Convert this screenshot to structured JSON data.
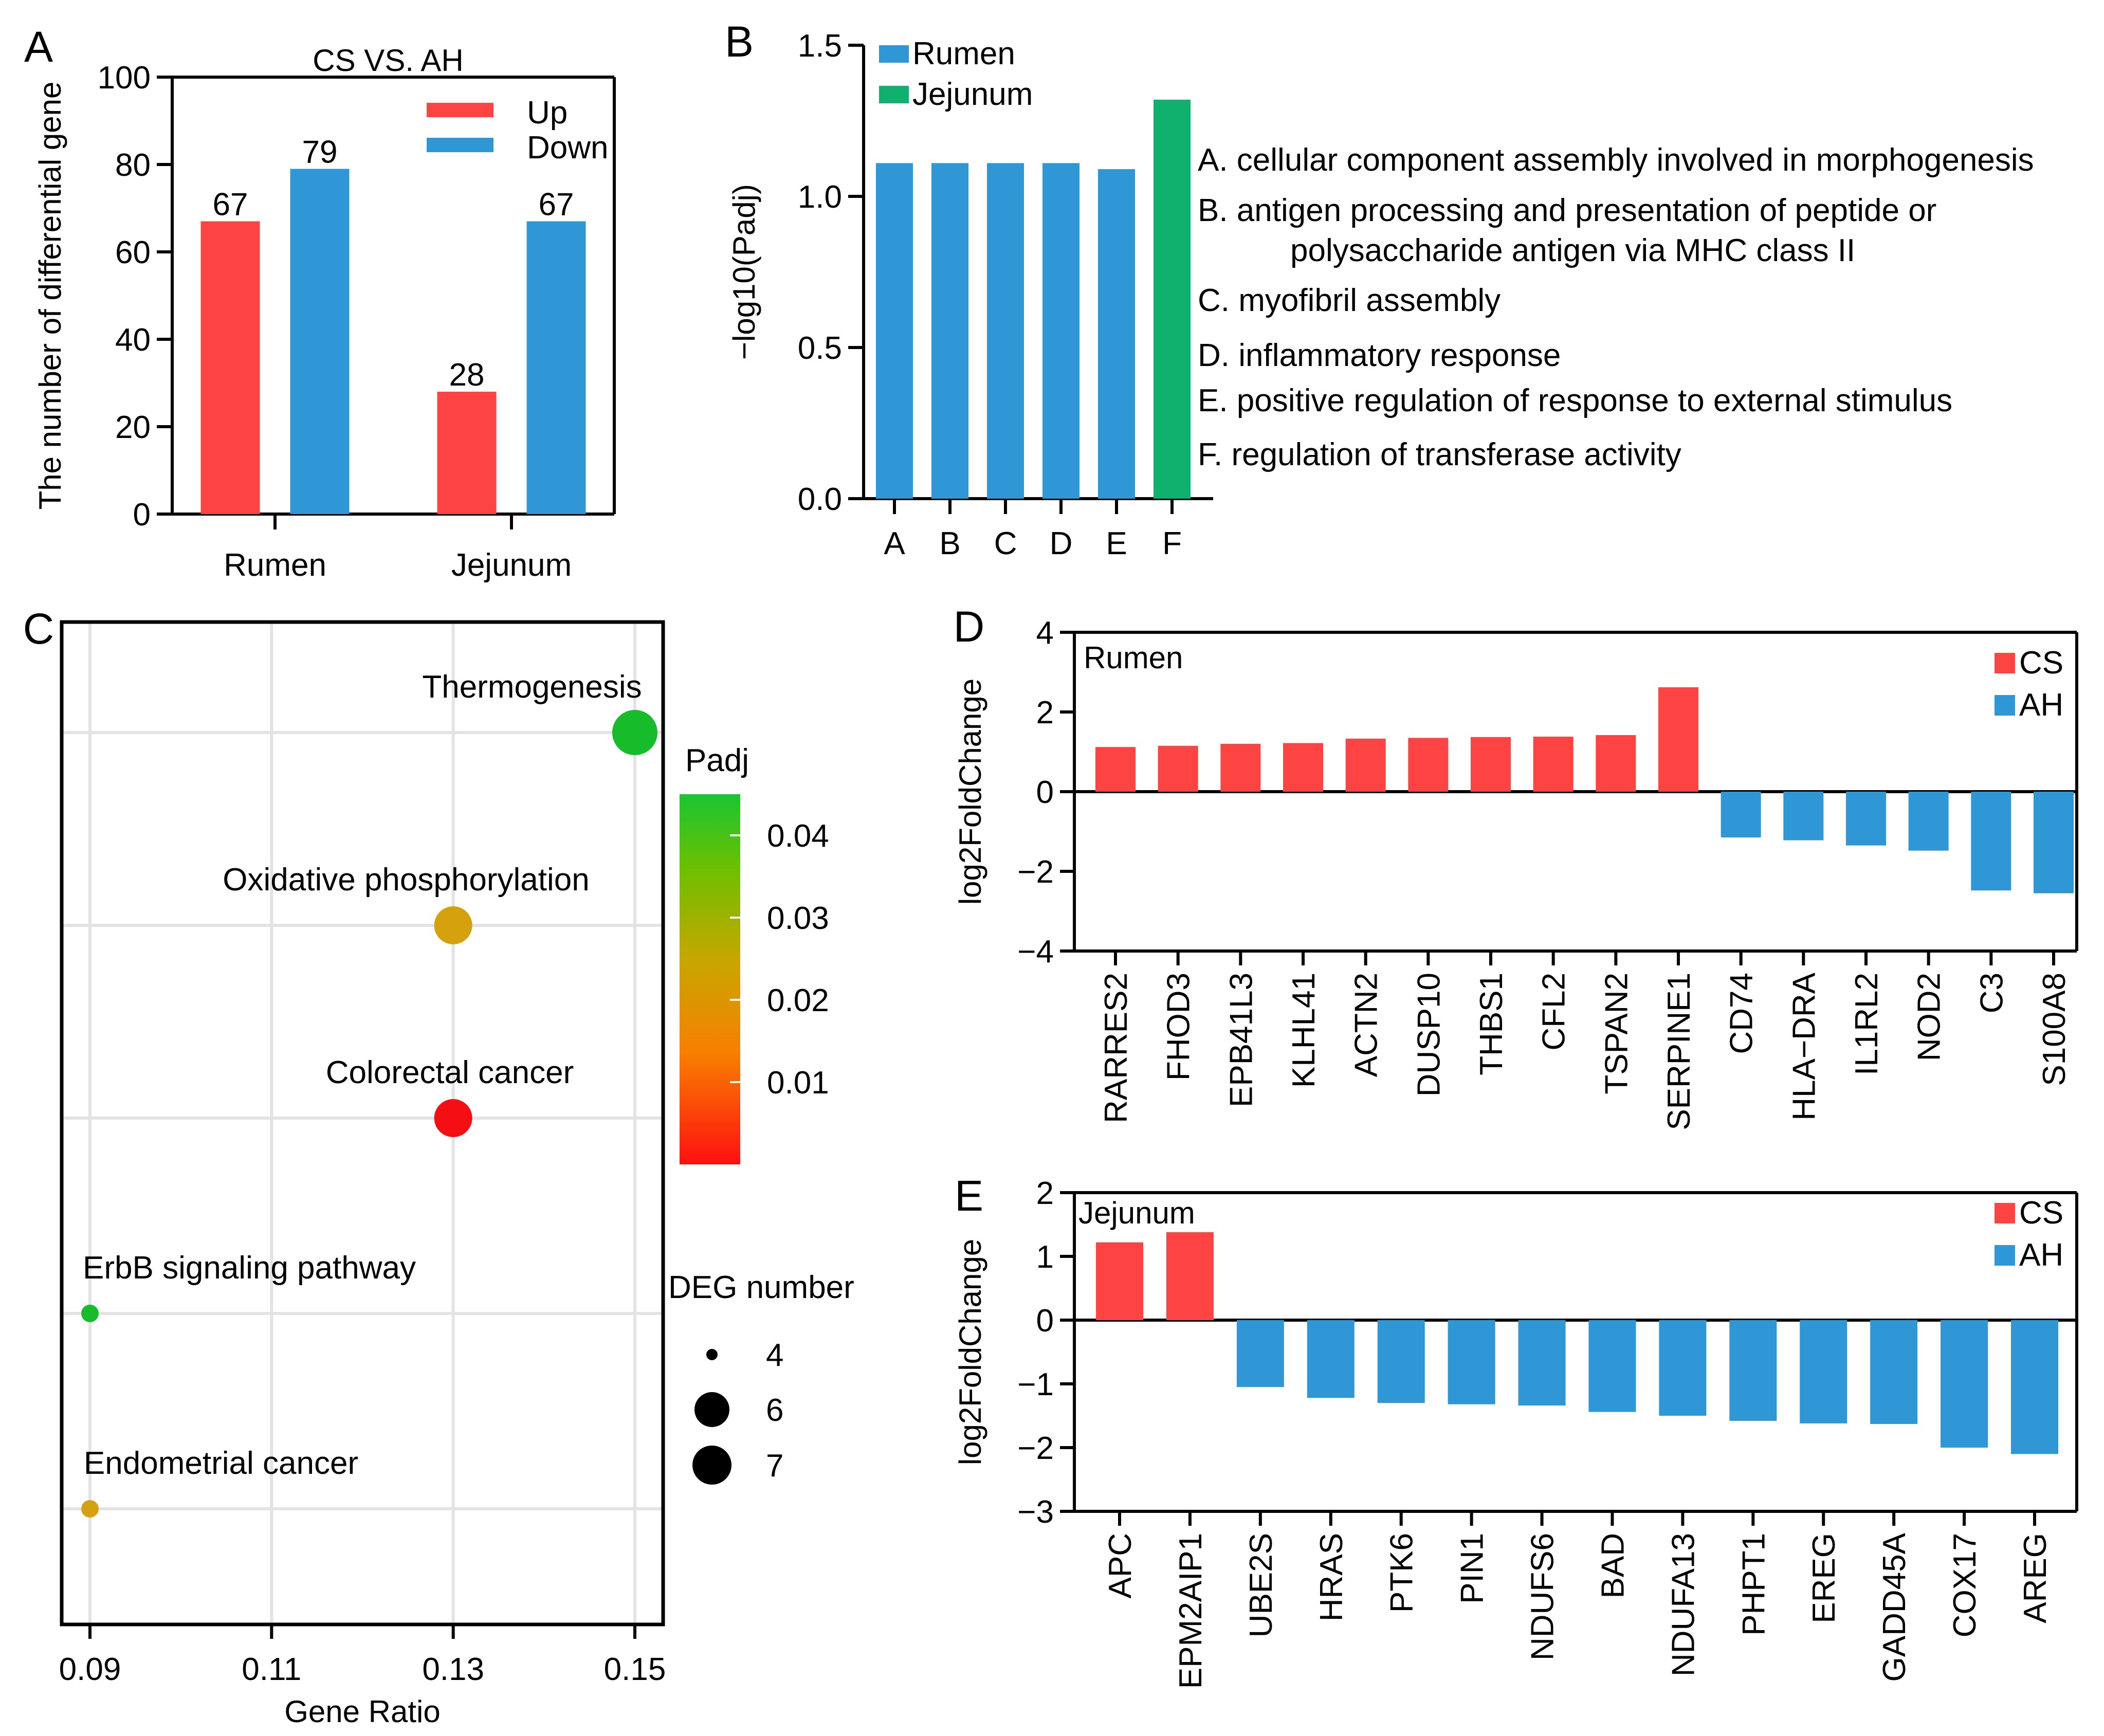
{
  "colors": {
    "up_red": "#fe4343",
    "down_blue": "#2f97d5",
    "jejunum_green": "#10b06f",
    "grid": "#e3e3e3"
  },
  "chart_data": [
    {
      "panel": "A",
      "type": "bar",
      "title": "CS VS. AH",
      "categories": [
        "Rumen",
        "Jejunum"
      ],
      "series": [
        {
          "name": "Up",
          "values": [
            67,
            28
          ],
          "color": "#fe4343"
        },
        {
          "name": "Down",
          "values": [
            79,
            67
          ],
          "color": "#2f97d5"
        }
      ],
      "ylabel": "The number of differential gene",
      "xlabel": "",
      "ylim": [
        0,
        100
      ],
      "yticks": [
        0,
        20,
        40,
        60,
        80,
        100
      ],
      "legend": "top-right"
    },
    {
      "panel": "B",
      "type": "bar",
      "categories": [
        "A",
        "B",
        "C",
        "D",
        "E",
        "F"
      ],
      "values": [
        1.11,
        1.11,
        1.11,
        1.11,
        1.09,
        1.32
      ],
      "groups": [
        "Rumen",
        "Rumen",
        "Rumen",
        "Rumen",
        "Rumen",
        "Jejunum"
      ],
      "legend": [
        {
          "name": "Rumen",
          "color": "#2f97d5"
        },
        {
          "name": "Jejunum",
          "color": "#10b06f"
        }
      ],
      "ylabel": "−log10(Padj)",
      "ylim": [
        0,
        1.5
      ],
      "yticks": [
        "0.0",
        "0.5",
        "1.0",
        "1.5"
      ],
      "annotations": [
        "A. cellular component assembly involved in morphogenesis",
        "B. antigen processing and presentation of peptide or",
        "polysaccharide antigen via MHC class II",
        "C. myofibril assembly",
        "D. inflammatory response",
        "E. positive regulation of response to external stimulus",
        "F. regulation of transferase activity"
      ]
    },
    {
      "panel": "C",
      "type": "scatter",
      "xlabel": "Gene Ratio",
      "xlim": [
        0.09,
        0.15
      ],
      "xticks": [
        "0.09",
        "0.11",
        "0.13",
        "0.15"
      ],
      "points": [
        {
          "label": "Thermogenesis",
          "x": 0.15,
          "padj": 0.045,
          "deg": 7,
          "color": "#17bc2a"
        },
        {
          "label": "Oxidative phosphorylation",
          "x": 0.13,
          "padj": 0.023,
          "deg": 6,
          "color": "#d5a10d"
        },
        {
          "label": "Colorectal cancer",
          "x": 0.13,
          "padj": 0.001,
          "deg": 6,
          "color": "#f50f14"
        },
        {
          "label": "ErbB signaling pathway",
          "x": 0.09,
          "padj": 0.045,
          "deg": 4,
          "color": "#17bc2a"
        },
        {
          "label": "Endometrial cancer",
          "x": 0.09,
          "padj": 0.023,
          "deg": 4,
          "color": "#d5a10d"
        }
      ],
      "colorbar": {
        "title": "Padj",
        "ticks": [
          "0.04",
          "0.03",
          "0.02",
          "0.01"
        ],
        "min": 0,
        "max": 0.045
      },
      "size_legend": {
        "title": "DEG number",
        "entries": [
          "4",
          "6",
          "7"
        ]
      }
    },
    {
      "panel": "D",
      "type": "bar",
      "label": "Rumen",
      "categories": [
        "RARRES2",
        "FHOD3",
        "EPB41L3",
        "KLHL41",
        "ACTN2",
        "DUSP10",
        "THBS1",
        "CFL2",
        "TSPAN2",
        "SERPINE1",
        "CD74",
        "HLA−DRA",
        "IL1RL2",
        "NOD2",
        "C3",
        "S100A8"
      ],
      "values": [
        1.12,
        1.15,
        1.2,
        1.22,
        1.33,
        1.35,
        1.37,
        1.38,
        1.42,
        2.62,
        -1.15,
        -1.22,
        -1.35,
        -1.48,
        -2.48,
        -2.55
      ],
      "ylabel": "log2FoldChange",
      "ylim": [
        -4,
        4
      ],
      "yticks": [
        "−4",
        "−2",
        "0",
        "2",
        "4"
      ],
      "legend": [
        {
          "name": "CS",
          "color": "#fe4343"
        },
        {
          "name": "AH",
          "color": "#2f97d5"
        }
      ]
    },
    {
      "panel": "E",
      "type": "bar",
      "label": "Jejunum",
      "categories": [
        "APC",
        "EPM2AIP1",
        "UBE2S",
        "HRAS",
        "PTK6",
        "PIN1",
        "NDUFS6",
        "BAD",
        "NDUFA13",
        "PHPT1",
        "EREG",
        "GADD45A",
        "COX17",
        "AREG"
      ],
      "values": [
        1.22,
        1.38,
        -1.05,
        -1.22,
        -1.3,
        -1.32,
        -1.34,
        -1.44,
        -1.5,
        -1.58,
        -1.62,
        -1.63,
        -2.0,
        -2.1
      ],
      "ylabel": "log2FoldChange",
      "ylim": [
        -3,
        2
      ],
      "yticks": [
        "−3",
        "−2",
        "−1",
        "0",
        "1",
        "2"
      ],
      "legend": [
        {
          "name": "CS",
          "color": "#fe4343"
        },
        {
          "name": "AH",
          "color": "#2f97d5"
        }
      ]
    }
  ]
}
